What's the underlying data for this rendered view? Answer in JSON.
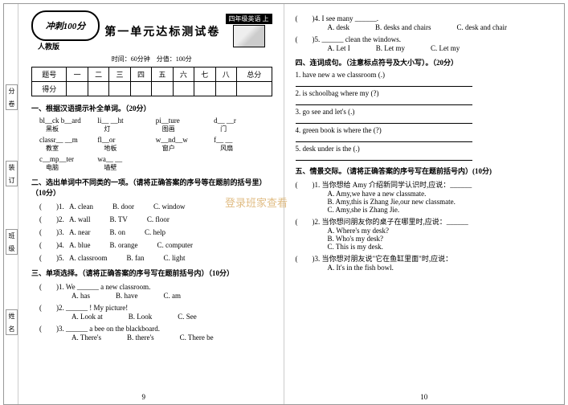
{
  "logo": "冲刺100分",
  "version": "人教版",
  "title": "第一单元达标测试卷",
  "grade": "四年级英语 上",
  "time": "时间：60分钟　分值：100分",
  "scoreHead": [
    "题号",
    "一",
    "二",
    "三",
    "四",
    "五",
    "六",
    "七",
    "八",
    "总分"
  ],
  "scoreRow": "得分",
  "sec1": "一、根据汉语提示补全单词。（20分）",
  "fill": [
    [
      {
        "en": "bl__ck b__ard",
        "cn": "黑板"
      },
      {
        "en": "li__ __ht",
        "cn": "灯"
      },
      {
        "en": "pi__ture",
        "cn": "图画"
      },
      {
        "en": "d__ __r",
        "cn": "门"
      }
    ],
    [
      {
        "en": "classr__ __m",
        "cn": "教室"
      },
      {
        "en": "fl__or",
        "cn": "地板"
      },
      {
        "en": "w__nd__w",
        "cn": "窗户"
      },
      {
        "en": "f__ __",
        "cn": "风扇"
      }
    ],
    [
      {
        "en": "c__mp__ter",
        "cn": "电脑"
      },
      {
        "en": "wa__ __",
        "cn": "墙壁"
      },
      {
        "en": "",
        "cn": ""
      },
      {
        "en": "",
        "cn": ""
      }
    ]
  ],
  "sec2": "二、选出单词中不同类的一项。（请将正确答案的序号等在题前的括号里）（10分）",
  "q2": [
    {
      "n": "1",
      "o": [
        "A. clean",
        "B. door",
        "C. window"
      ]
    },
    {
      "n": "2",
      "o": [
        "A. wall",
        "B. TV",
        "C. floor"
      ]
    },
    {
      "n": "3",
      "o": [
        "A. near",
        "B. on",
        "C. help"
      ]
    },
    {
      "n": "4",
      "o": [
        "A. blue",
        "B. orange",
        "C. computer"
      ]
    },
    {
      "n": "5",
      "o": [
        "A. classroom",
        "B. fan",
        "C. light"
      ]
    }
  ],
  "sec3": "三、单项选择。（请将正确答案的序号写在题前括号内）（10分）",
  "q3": [
    {
      "n": "1",
      "s": "We ______ a new classroom.",
      "o": [
        "A. has",
        "B. have",
        "C. am"
      ]
    },
    {
      "n": "2",
      "s": "______ ! My picture!",
      "o": [
        "A. Look at",
        "B. Look",
        "C. See"
      ]
    },
    {
      "n": "3",
      "s": "______ a bee on the blackboard.",
      "o": [
        "A. There's",
        "B. there's",
        "C. There be"
      ]
    }
  ],
  "q3r": [
    {
      "n": "4",
      "s": "I see many ______.",
      "o": [
        "A. desk",
        "B. desks and chairs",
        "C. desk and chair"
      ]
    },
    {
      "n": "5",
      "s": "______ clean the windows.",
      "o": [
        "A. Let I",
        "B. Let my",
        "C. Let my"
      ]
    }
  ],
  "sec4": "四、连词成句。（注意标点符号及大小写）。（20分）",
  "q4": [
    "1. have  new  a  we  classroom  (.)",
    "2. is  schoolbag  where  my  (?)",
    "3. go  see  and  let's  (.)",
    "4. green  book  is  where  the  (?)",
    "5. desk  under  is  the  (.)"
  ],
  "sec5": "五、情景交际。（请将正确答案的序号写在题前括号内）(10分)",
  "q5": [
    {
      "n": "1",
      "s": "当你想给 Amy 介绍新同学认识时,应说：______",
      "o": [
        "A. Amy,we have a new classmate.",
        "B. Amy,this is Zhang Jie,our new classmate.",
        "C. Amy,she is Zhang Jie."
      ]
    },
    {
      "n": "2",
      "s": "当你想问朋友你的桌子在哪里时,应说：______",
      "o": [
        "A. Where's my desk?",
        "B. Who's my desk?",
        "C. This is my desk."
      ]
    },
    {
      "n": "3",
      "s": "当你想对朋友说\"它在鱼缸里面\"时,应说：",
      "o": [
        "A. It's in the fish bowl."
      ]
    }
  ],
  "pn_l": "9",
  "pn_r": "10",
  "watermark": "登录班家查看",
  "tabs": [
    "分　卷",
    "装　订",
    "班　级",
    "姓　名"
  ]
}
